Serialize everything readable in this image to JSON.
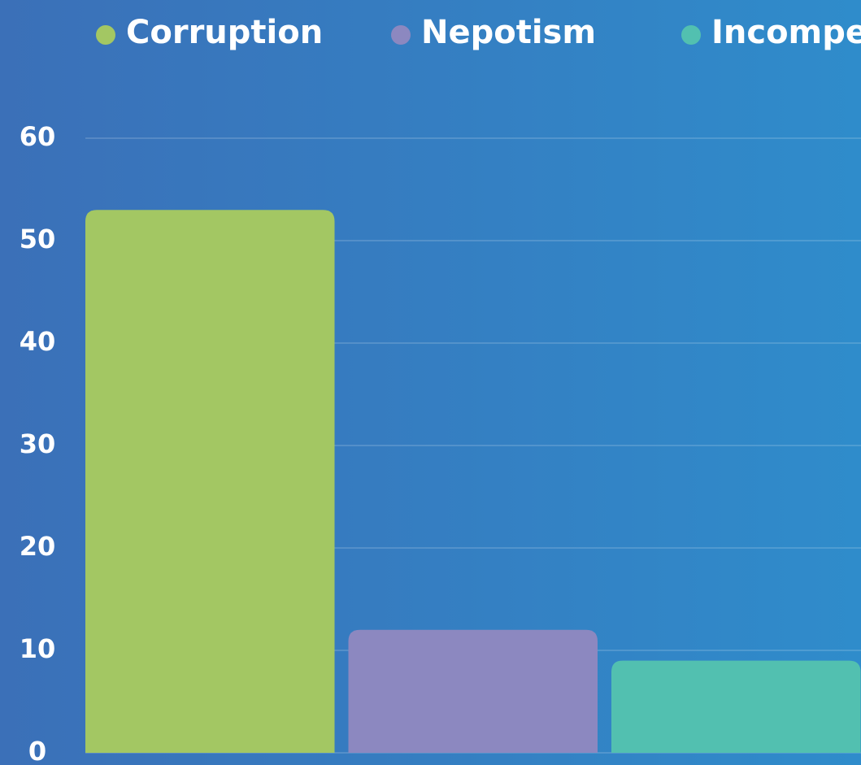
{
  "chart_data": {
    "type": "bar",
    "categories": [
      "Corruption",
      "Nepotism",
      "Incompe"
    ],
    "values": [
      53,
      12,
      9
    ],
    "colors": [
      "#a3c763",
      "#8c88c0",
      "#52c0b0"
    ],
    "ylim": [
      0,
      60
    ],
    "yticks": [
      0,
      10,
      20,
      30,
      40,
      50,
      60
    ],
    "grid": true
  }
}
